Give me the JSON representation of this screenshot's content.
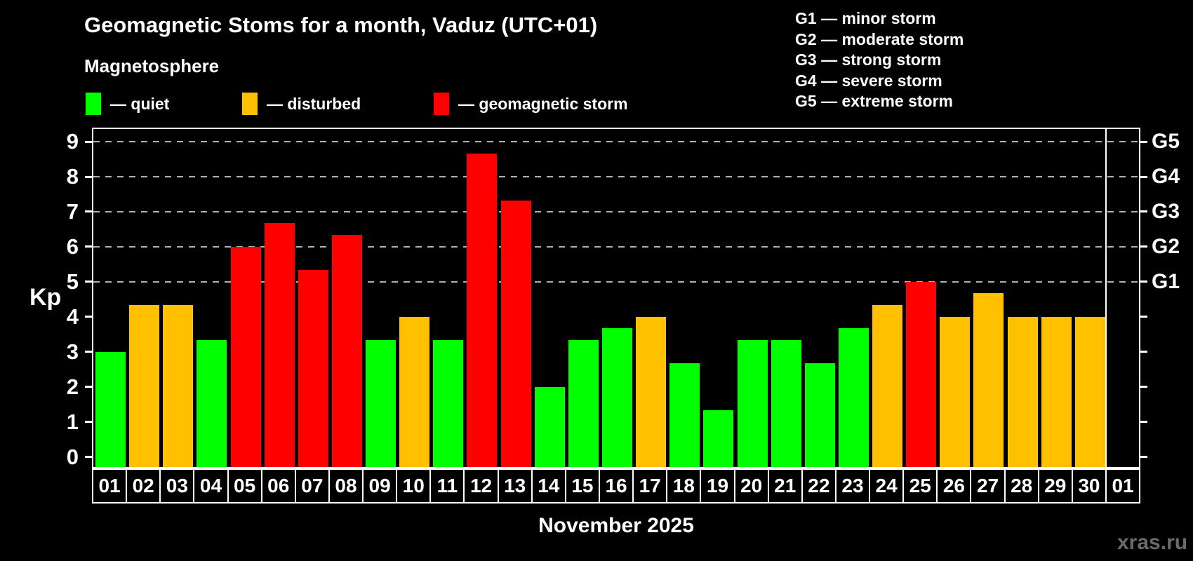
{
  "header": {
    "title": "Geomagnetic Stoms for a month, Vaduz (UTC+01)",
    "subtitle": "Magnetosphere"
  },
  "legend": {
    "items": [
      {
        "name": "quiet",
        "label": "— quiet",
        "color": "#00ff00"
      },
      {
        "name": "disturbed",
        "label": "— disturbed",
        "color": "#ffc000"
      },
      {
        "name": "storm",
        "label": "— geomagnetic storm",
        "color": "#ff0000"
      }
    ]
  },
  "storm_scale_legend": {
    "lines": [
      "G1 — minor storm",
      "G2 — moderate storm",
      "G3 — strong storm",
      "G4 — severe storm",
      "G5 — extreme storm"
    ]
  },
  "axes": {
    "y_label": "Kp",
    "y_ticks": [
      "0",
      "1",
      "2",
      "3",
      "4",
      "5",
      "6",
      "7",
      "8",
      "9"
    ],
    "right_labels": [
      {
        "label": "G5",
        "value": 9
      },
      {
        "label": "G4",
        "value": 8
      },
      {
        "label": "G3",
        "value": 7
      },
      {
        "label": "G2",
        "value": 6
      },
      {
        "label": "G1",
        "value": 5
      }
    ]
  },
  "footer": {
    "month_label": "November 2025",
    "watermark": "xras.ru"
  },
  "chart_data": {
    "type": "bar",
    "title": "Geomagnetic Stoms for a month, Vaduz (UTC+01)",
    "subtitle": "Magnetosphere",
    "ylabel": "Kp",
    "ylim": [
      0,
      9
    ],
    "grid": "dashed horizontal lines at Kp 5–9 (G1–G5 thresholds)",
    "gridlines_at": [
      5,
      6,
      7,
      8,
      9
    ],
    "categories": [
      "01",
      "02",
      "03",
      "04",
      "05",
      "06",
      "07",
      "08",
      "09",
      "10",
      "11",
      "12",
      "13",
      "14",
      "15",
      "16",
      "17",
      "18",
      "19",
      "20",
      "21",
      "22",
      "23",
      "24",
      "25",
      "26",
      "27",
      "28",
      "29",
      "30",
      "01"
    ],
    "values": [
      3,
      4.33,
      4.33,
      3.33,
      6,
      6.67,
      5.33,
      6.33,
      3.33,
      4,
      3.33,
      8.67,
      7.33,
      2,
      3.33,
      3.67,
      4,
      2.67,
      1.33,
      3.33,
      3.33,
      2.67,
      3.67,
      4.33,
      5,
      4,
      4.67,
      4,
      4,
      4,
      null
    ],
    "statuses": [
      "quiet",
      "disturbed",
      "disturbed",
      "quiet",
      "storm",
      "storm",
      "storm",
      "storm",
      "quiet",
      "disturbed",
      "quiet",
      "storm",
      "storm",
      "quiet",
      "quiet",
      "quiet",
      "disturbed",
      "quiet",
      "quiet",
      "quiet",
      "quiet",
      "quiet",
      "quiet",
      "disturbed",
      "storm",
      "disturbed",
      "disturbed",
      "disturbed",
      "disturbed",
      "disturbed",
      null
    ],
    "status_colors": {
      "quiet": "#00ff00",
      "disturbed": "#ffc000",
      "storm": "#ff0000"
    },
    "note": "Last category 01 is the next month (empty slot after white separator line)",
    "month_label": "November 2025"
  }
}
